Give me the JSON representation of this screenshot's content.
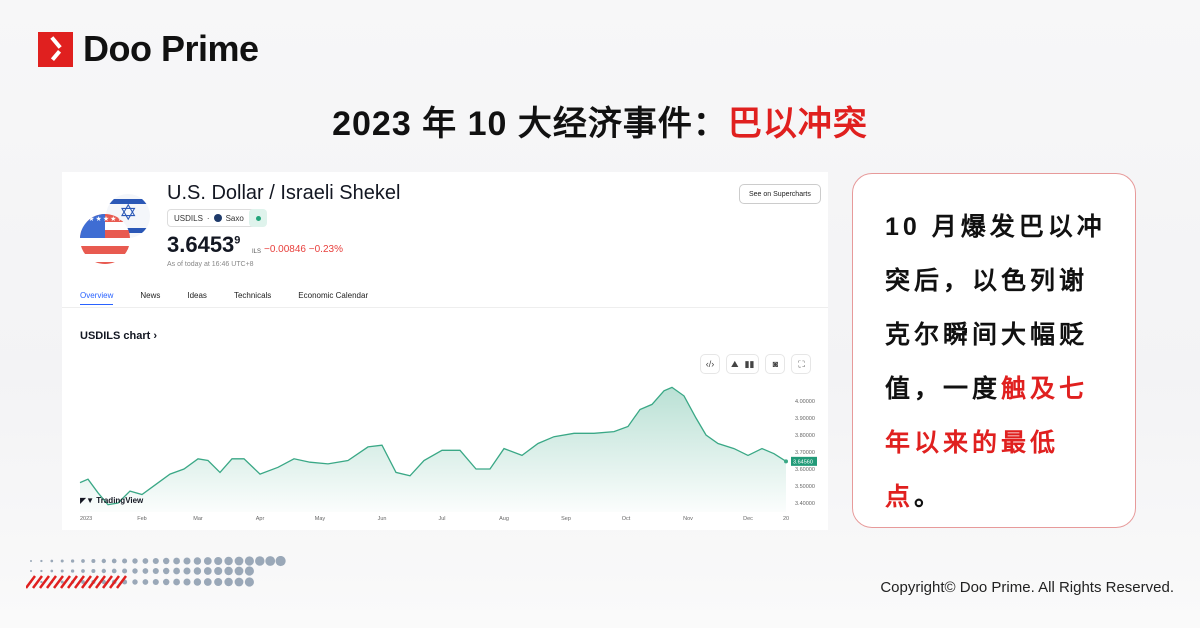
{
  "brand": {
    "logo_text": "Doo Prime",
    "accent": "#e0201f"
  },
  "headline": {
    "prefix": "2023 年 10 大经济事件：",
    "highlight": "巴以冲突"
  },
  "widget": {
    "pair_title": "U.S. Dollar / Israeli Shekel",
    "symbol": "USDILS",
    "source": "Saxo",
    "price": "3.6453",
    "price_super": "9",
    "currency": "ILS",
    "change": "−0.00846 −0.23%",
    "as_of": "As of today at 16:46 UTC+8",
    "supercharts_button": "See on Supercharts",
    "tabs": [
      "Overview",
      "News",
      "Ideas",
      "Technicals",
      "Economic Calendar"
    ],
    "active_tab": "Overview",
    "chart_link": "USDILS chart ›",
    "watermark": "TradingView",
    "tools": [
      "embed-icon",
      "area-chart-icon",
      "candles-icon",
      "camera-icon",
      "fullscreen-icon"
    ]
  },
  "chart_data": {
    "type": "area",
    "line_color": "#3aa886",
    "x_ticks": [
      "2023",
      "Feb",
      "Mar",
      "Apr",
      "May",
      "Jun",
      "Jul",
      "Aug",
      "Sep",
      "Oct",
      "Nov",
      "Dec",
      "20"
    ],
    "y_ticks": [
      "4.00000",
      "3.90000",
      "3.80000",
      "3.70000",
      "3.60000",
      "3.50000",
      "3.40000"
    ],
    "ylim": [
      3.38,
      4.1
    ],
    "last_value_label": "3.64560",
    "x": [
      "2023-01-01",
      "2023-01-05",
      "2023-01-10",
      "2023-01-15",
      "2023-01-20",
      "2023-01-26",
      "2023-02-01",
      "2023-02-08",
      "2023-02-15",
      "2023-02-22",
      "2023-03-01",
      "2023-03-06",
      "2023-03-12",
      "2023-03-18",
      "2023-03-24",
      "2023-04-01",
      "2023-04-10",
      "2023-04-18",
      "2023-04-26",
      "2023-05-05",
      "2023-05-15",
      "2023-05-25",
      "2023-06-01",
      "2023-06-08",
      "2023-06-15",
      "2023-06-22",
      "2023-07-01",
      "2023-07-10",
      "2023-07-18",
      "2023-07-25",
      "2023-08-01",
      "2023-08-10",
      "2023-08-18",
      "2023-08-26",
      "2023-09-05",
      "2023-09-15",
      "2023-09-25",
      "2023-10-02",
      "2023-10-08",
      "2023-10-14",
      "2023-10-20",
      "2023-10-24",
      "2023-10-30",
      "2023-11-05",
      "2023-11-10",
      "2023-11-16",
      "2023-11-24",
      "2023-12-01",
      "2023-12-08",
      "2023-12-14",
      "2023-12-20"
    ],
    "y": [
      3.52,
      3.54,
      3.46,
      3.39,
      3.4,
      3.47,
      3.45,
      3.51,
      3.57,
      3.6,
      3.66,
      3.65,
      3.58,
      3.66,
      3.66,
      3.57,
      3.61,
      3.66,
      3.64,
      3.63,
      3.65,
      3.73,
      3.74,
      3.58,
      3.56,
      3.65,
      3.71,
      3.71,
      3.6,
      3.6,
      3.72,
      3.68,
      3.75,
      3.79,
      3.81,
      3.81,
      3.82,
      3.85,
      3.95,
      3.98,
      4.06,
      4.08,
      4.03,
      3.9,
      3.8,
      3.75,
      3.72,
      3.68,
      3.72,
      3.69,
      3.645
    ]
  },
  "side_text": {
    "part1": "10 月爆发巴以冲突后，以色列谢克尔瞬间大幅贬值，一度",
    "highlight": "触及七年以来的最低点",
    "part2": "。"
  },
  "footer": {
    "copyright": "Copyright© Doo Prime. All Rights Reserved."
  }
}
